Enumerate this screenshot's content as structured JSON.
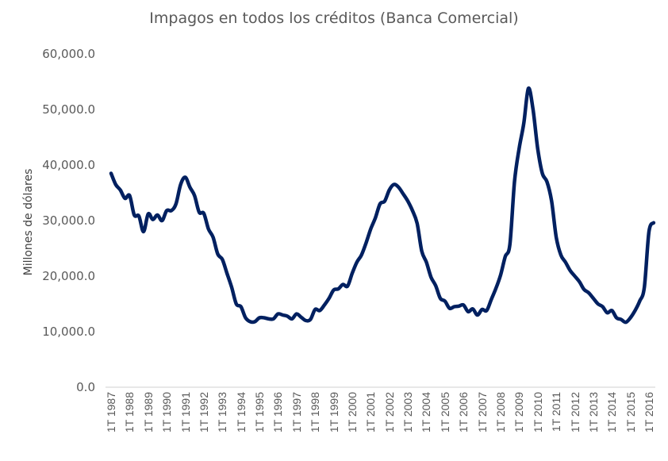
{
  "chart": {
    "title": "Impagos en todos los créditos (Banca Comercial)",
    "ylabel": "Millones de dólares",
    "yticks": [
      "60,000.0",
      "50,000.0",
      "40,000.0",
      "30,000.0",
      "20,000.0",
      "10,000.0",
      "0.0"
    ],
    "xticks": [
      "1T 1987",
      "1T 1988",
      "1T 1989",
      "1T 1990",
      "1T 1991",
      "1T 1992",
      "1T 1993",
      "1T 1994",
      "1T 1995",
      "1T 1996",
      "1T 1997",
      "1T 1998",
      "1T 1999",
      "1T 2000",
      "1T 2001",
      "1T 2002",
      "1T 2003",
      "1T 2004",
      "1T 2005",
      "1T 2006",
      "1T 2007",
      "1T 2008",
      "1T 2009",
      "1T 2010",
      "1T 2011",
      "1T 2012",
      "1T 2013",
      "1T 2014",
      "1T 2015",
      "1T 2016"
    ],
    "line_color": "#002060",
    "axis_color": "#d9d9d9"
  },
  "chart_data": {
    "type": "line",
    "title": "Impagos en todos los créditos (Banca Comercial)",
    "xlabel": "",
    "ylabel": "Millones de dólares",
    "ylim": [
      0,
      60000
    ],
    "grid": false,
    "legend": null,
    "categories": [
      "1T 1987",
      "1T 1988",
      "1T 1989",
      "1T 1990",
      "1T 1991",
      "1T 1992",
      "1T 1993",
      "1T 1994",
      "1T 1995",
      "1T 1996",
      "1T 1997",
      "1T 1998",
      "1T 1999",
      "1T 2000",
      "1T 2001",
      "1T 2002",
      "1T 2003",
      "1T 2004",
      "1T 2005",
      "1T 2006",
      "1T 2007",
      "1T 2008",
      "1T 2009",
      "1T 2010",
      "1T 2011",
      "1T 2012",
      "1T 2013",
      "1T 2014",
      "1T 2015",
      "1T 2016"
    ],
    "series": [
      {
        "name": "Impagos",
        "x": [
          1987.0,
          1987.25,
          1987.5,
          1987.75,
          1988.0,
          1988.25,
          1988.5,
          1988.75,
          1989.0,
          1989.25,
          1989.5,
          1989.75,
          1990.0,
          1990.25,
          1990.5,
          1990.75,
          1991.0,
          1991.25,
          1991.5,
          1991.75,
          1992.0,
          1992.25,
          1992.5,
          1992.75,
          1993.0,
          1993.25,
          1993.5,
          1993.75,
          1994.0,
          1994.25,
          1994.5,
          1994.75,
          1995.0,
          1995.25,
          1995.5,
          1995.75,
          1996.0,
          1996.25,
          1996.5,
          1996.75,
          1997.0,
          1997.25,
          1997.5,
          1997.75,
          1998.0,
          1998.25,
          1998.5,
          1998.75,
          1999.0,
          1999.25,
          1999.5,
          1999.75,
          2000.0,
          2000.25,
          2000.5,
          2000.75,
          2001.0,
          2001.25,
          2001.5,
          2001.75,
          2002.0,
          2002.25,
          2002.5,
          2002.75,
          2003.0,
          2003.25,
          2003.5,
          2003.75,
          2004.0,
          2004.25,
          2004.5,
          2004.75,
          2005.0,
          2005.25,
          2005.5,
          2005.75,
          2006.0,
          2006.25,
          2006.5,
          2006.75,
          2007.0,
          2007.25,
          2007.5,
          2007.75,
          2008.0,
          2008.25,
          2008.5,
          2008.75,
          2009.0,
          2009.25,
          2009.5,
          2009.75,
          2010.0,
          2010.25,
          2010.5,
          2010.75,
          2011.0,
          2011.25,
          2011.5,
          2011.75,
          2012.0,
          2012.25,
          2012.5,
          2012.75,
          2013.0,
          2013.25,
          2013.5,
          2013.75,
          2014.0,
          2014.25,
          2014.5,
          2014.75,
          2015.0,
          2015.25,
          2015.5,
          2015.75,
          2016.0,
          2016.25
        ],
        "values": [
          38500,
          36500,
          35500,
          34000,
          34500,
          31000,
          30800,
          28000,
          31200,
          30200,
          31000,
          30000,
          31800,
          31800,
          33000,
          36500,
          37800,
          36000,
          34500,
          31500,
          31300,
          28500,
          27000,
          24000,
          23000,
          20500,
          18000,
          15000,
          14500,
          12500,
          11800,
          11800,
          12500,
          12500,
          12300,
          12300,
          13200,
          13000,
          12800,
          12300,
          13200,
          12600,
          12000,
          12200,
          14000,
          13800,
          14800,
          16000,
          17500,
          17700,
          18500,
          18200,
          20500,
          22500,
          23800,
          26000,
          28500,
          30500,
          33000,
          33500,
          35500,
          36500,
          36000,
          34800,
          33500,
          31800,
          29500,
          24500,
          22500,
          19800,
          18300,
          16000,
          15500,
          14200,
          14500,
          14600,
          14800,
          13600,
          14100,
          13000,
          14000,
          13800,
          15800,
          17800,
          20200,
          23500,
          25700,
          37000,
          43000,
          47500,
          53800,
          50000,
          43000,
          38500,
          37000,
          33500,
          27000,
          23800,
          22500,
          21000,
          20000,
          19000,
          17600,
          17000,
          16000,
          15000,
          14500,
          13400,
          13800,
          12500,
          12200,
          11700,
          12500,
          13800,
          15500,
          18000,
          28000,
          29600
        ]
      }
    ]
  }
}
